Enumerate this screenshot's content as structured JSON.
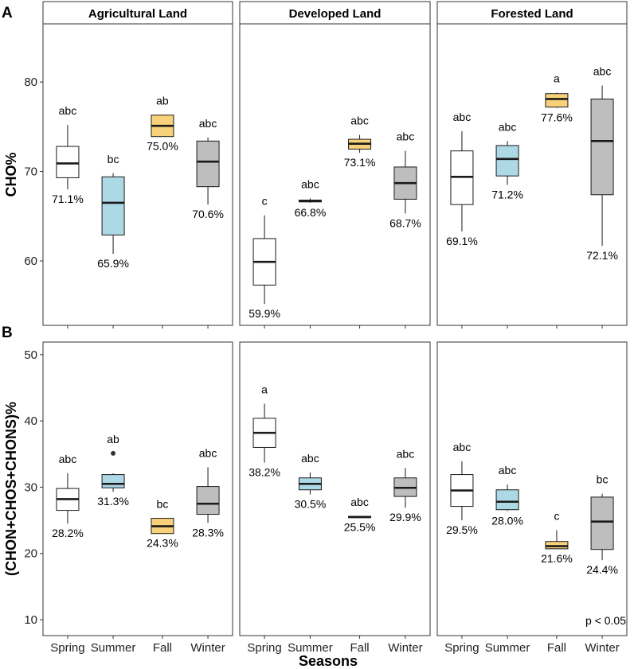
{
  "chart_data": {
    "type": "boxplot",
    "xlabel": "Seasons",
    "seasons": [
      "Spring",
      "Summer",
      "Fall",
      "Winter"
    ],
    "facets": [
      "Agricultural Land",
      "Developed Land",
      "Forested Land"
    ],
    "colors": {
      "Spring": "#ffffff",
      "Summer": "#add8e6",
      "Fall": "#f8d27a",
      "Winter": "#bebebe",
      "line": "#1a1a1a",
      "panel_border": "#333333",
      "strip_bg": "#ffffff"
    },
    "annotation": "p < 0.05",
    "rows": [
      {
        "letter": "A",
        "ylabel": "CHO%",
        "ylim": [
          52.8,
          86.5
        ],
        "ticks": [
          60,
          70,
          80
        ],
        "tick_labels": [
          "60",
          "70",
          "80"
        ],
        "panels": [
          {
            "facet": "Agricultural Land",
            "boxes": [
              {
                "season": "Spring",
                "whisker_low": 68.0,
                "q1": 69.3,
                "median": 70.9,
                "q3": 72.8,
                "whisker_high": 75.2,
                "sig": "abc",
                "value_label": "71.1%"
              },
              {
                "season": "Summer",
                "whisker_low": 60.8,
                "q1": 62.9,
                "median": 66.5,
                "q3": 69.4,
                "whisker_high": 69.8,
                "sig": "bc",
                "value_label": "65.9%"
              },
              {
                "season": "Fall",
                "whisker_low": 73.9,
                "q1": 73.9,
                "median": 75.1,
                "q3": 76.3,
                "whisker_high": 76.3,
                "sig": "ab",
                "value_label": "75.0%"
              },
              {
                "season": "Winter",
                "whisker_low": 66.3,
                "q1": 68.3,
                "median": 71.1,
                "q3": 73.4,
                "whisker_high": 73.8,
                "sig": "abc",
                "value_label": "70.6%"
              }
            ]
          },
          {
            "facet": "Developed Land",
            "boxes": [
              {
                "season": "Spring",
                "whisker_low": 55.2,
                "q1": 57.3,
                "median": 59.9,
                "q3": 62.5,
                "whisker_high": 65.1,
                "sig": "c",
                "value_label": "59.9%"
              },
              {
                "season": "Summer",
                "whisker_low": 66.5,
                "q1": 66.6,
                "median": 66.7,
                "q3": 66.8,
                "whisker_high": 67.0,
                "sig": "abc",
                "value_label": "66.8%"
              },
              {
                "season": "Fall",
                "whisker_low": 72.1,
                "q1": 72.5,
                "median": 73.1,
                "q3": 73.6,
                "whisker_high": 74.1,
                "sig": "abc",
                "value_label": "73.1%"
              },
              {
                "season": "Winter",
                "whisker_low": 65.3,
                "q1": 66.9,
                "median": 68.7,
                "q3": 70.5,
                "whisker_high": 72.3,
                "sig": "abc",
                "value_label": "68.7%"
              }
            ]
          },
          {
            "facet": "Forested Land",
            "boxes": [
              {
                "season": "Spring",
                "whisker_low": 63.3,
                "q1": 66.3,
                "median": 69.4,
                "q3": 72.3,
                "whisker_high": 74.5,
                "sig": "abc",
                "value_label": "69.1%"
              },
              {
                "season": "Summer",
                "whisker_low": 68.5,
                "q1": 69.5,
                "median": 71.4,
                "q3": 72.9,
                "whisker_high": 73.4,
                "sig": "abc",
                "value_label": "71.2%"
              },
              {
                "season": "Fall",
                "whisker_low": 77.1,
                "q1": 77.2,
                "median": 78.1,
                "q3": 78.7,
                "whisker_high": 78.8,
                "sig": "a",
                "value_label": "77.6%"
              },
              {
                "season": "Winter",
                "whisker_low": 61.7,
                "q1": 67.4,
                "median": 73.4,
                "q3": 78.1,
                "whisker_high": 79.6,
                "sig": "abc",
                "value_label": "72.1%"
              }
            ]
          }
        ]
      },
      {
        "letter": "B",
        "ylabel": "(CHON+CHOS+CHONS)%",
        "ylim": [
          7.6,
          51.9
        ],
        "ticks": [
          10,
          20,
          30,
          40,
          50
        ],
        "tick_labels": [
          "10",
          "20",
          "30",
          "40",
          "50"
        ],
        "panels": [
          {
            "facet": "Agricultural Land",
            "boxes": [
              {
                "season": "Spring",
                "whisker_low": 24.5,
                "q1": 26.5,
                "median": 28.2,
                "q3": 29.8,
                "whisker_high": 32.1,
                "sig": "abc",
                "value_label": "28.2%"
              },
              {
                "season": "Summer",
                "whisker_low": 29.3,
                "q1": 29.9,
                "median": 30.5,
                "q3": 31.9,
                "whisker_high": 32.1,
                "outliers": [
                  35.1
                ],
                "sig": "ab",
                "value_label": "31.3%"
              },
              {
                "season": "Fall",
                "whisker_low": 23.0,
                "q1": 23.0,
                "median": 24.1,
                "q3": 25.3,
                "whisker_high": 25.3,
                "sig": "bc",
                "value_label": "24.3%"
              },
              {
                "season": "Winter",
                "whisker_low": 24.6,
                "q1": 25.9,
                "median": 27.5,
                "q3": 30.1,
                "whisker_high": 33.0,
                "sig": "abc",
                "value_label": "28.3%"
              }
            ]
          },
          {
            "facet": "Developed Land",
            "boxes": [
              {
                "season": "Spring",
                "whisker_low": 33.7,
                "q1": 36.0,
                "median": 38.2,
                "q3": 40.4,
                "whisker_high": 42.6,
                "sig": "a",
                "value_label": "38.2%"
              },
              {
                "season": "Summer",
                "whisker_low": 28.9,
                "q1": 29.6,
                "median": 30.5,
                "q3": 31.4,
                "whisker_high": 32.2,
                "sig": "abc",
                "value_label": "30.5%"
              },
              {
                "season": "Fall",
                "whisker_low": 25.4,
                "q1": 25.4,
                "median": 25.5,
                "q3": 25.6,
                "whisker_high": 25.6,
                "sig": "abc",
                "value_label": "25.5%"
              },
              {
                "season": "Winter",
                "whisker_low": 26.9,
                "q1": 28.6,
                "median": 29.9,
                "q3": 31.4,
                "whisker_high": 32.9,
                "sig": "abc",
                "value_label": "29.9%"
              }
            ]
          },
          {
            "facet": "Forested Land",
            "boxes": [
              {
                "season": "Spring",
                "whisker_low": 25.0,
                "q1": 27.1,
                "median": 29.5,
                "q3": 31.9,
                "whisker_high": 33.9,
                "sig": "abc",
                "value_label": "29.5%"
              },
              {
                "season": "Summer",
                "whisker_low": 26.4,
                "q1": 26.6,
                "median": 27.8,
                "q3": 29.6,
                "whisker_high": 30.4,
                "sig": "abc",
                "value_label": "28.0%"
              },
              {
                "season": "Fall",
                "whisker_low": 20.7,
                "q1": 20.7,
                "median": 21.1,
                "q3": 21.8,
                "whisker_high": 23.5,
                "sig": "c",
                "value_label": "21.6%"
              },
              {
                "season": "Winter",
                "whisker_low": 19.0,
                "q1": 20.6,
                "median": 24.8,
                "q3": 28.5,
                "whisker_high": 29.0,
                "sig": "bc",
                "value_label": "24.4%"
              }
            ]
          }
        ]
      }
    ]
  }
}
